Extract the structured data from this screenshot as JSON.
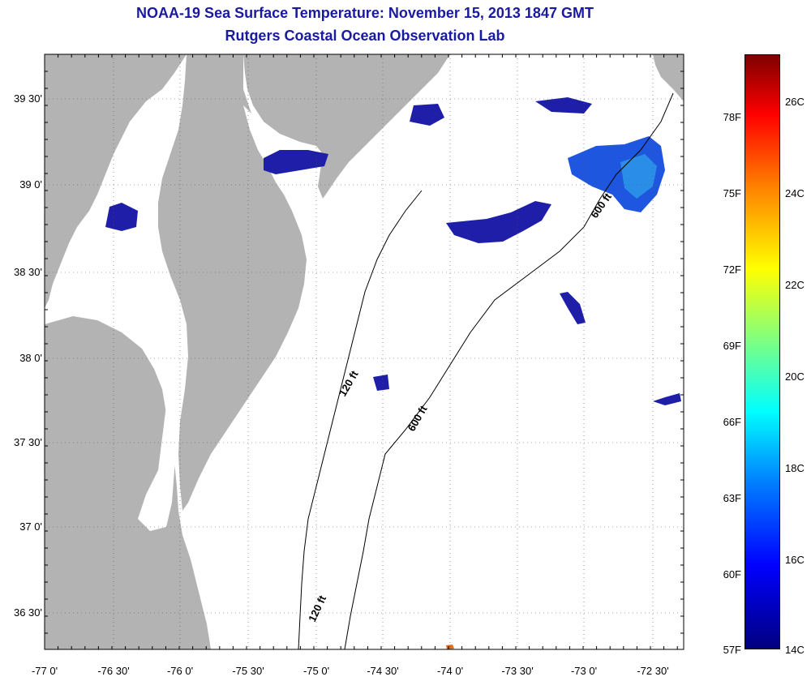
{
  "title": {
    "line1": "NOAA-19 Sea Surface Temperature:  November 15, 2013 1847 GMT",
    "line2": "Rutgers Coastal Ocean Observation Lab"
  },
  "map": {
    "region": "Mid-Atlantic Bight: Delaware Bay, Chesapeake Bay, Delmarva Peninsula",
    "lon_range": [
      -77.0,
      -72.25
    ],
    "lat_range": [
      36.25,
      39.75
    ],
    "lat_ticks": [
      "39 30'",
      "39 0'",
      "38 30'",
      "38 0'",
      "37 30'",
      "37 0'",
      "36 30'"
    ],
    "lon_ticks": [
      "-77 0'",
      "-76 30'",
      "-76 0'",
      "-75 30'",
      "-75 0'",
      "-74 30'",
      "-74 0'",
      "-73 30'",
      "-73 0'",
      "-72 30'"
    ],
    "land_color": "#b3b3b3",
    "grid": "dotted",
    "isobath_labels": [
      {
        "name": "isobath-120ft-north",
        "text": "120 ft"
      },
      {
        "name": "isobath-600ft-south",
        "text": "600 ft"
      },
      {
        "name": "isobath-600ft-north",
        "text": "600 ft"
      },
      {
        "name": "isobath-120ft-south",
        "text": "120 ft"
      }
    ]
  },
  "colorbar": {
    "fahrenheit_labels": [
      "78F",
      "75F",
      "72F",
      "69F",
      "66F",
      "63F",
      "60F",
      "57F"
    ],
    "celsius_labels": [
      "26C",
      "24C",
      "22C",
      "20C",
      "18C",
      "16C",
      "14C"
    ],
    "colors": {
      "min": "#00007f",
      "mid": "#7fff7f",
      "max": "#7f0000"
    }
  }
}
